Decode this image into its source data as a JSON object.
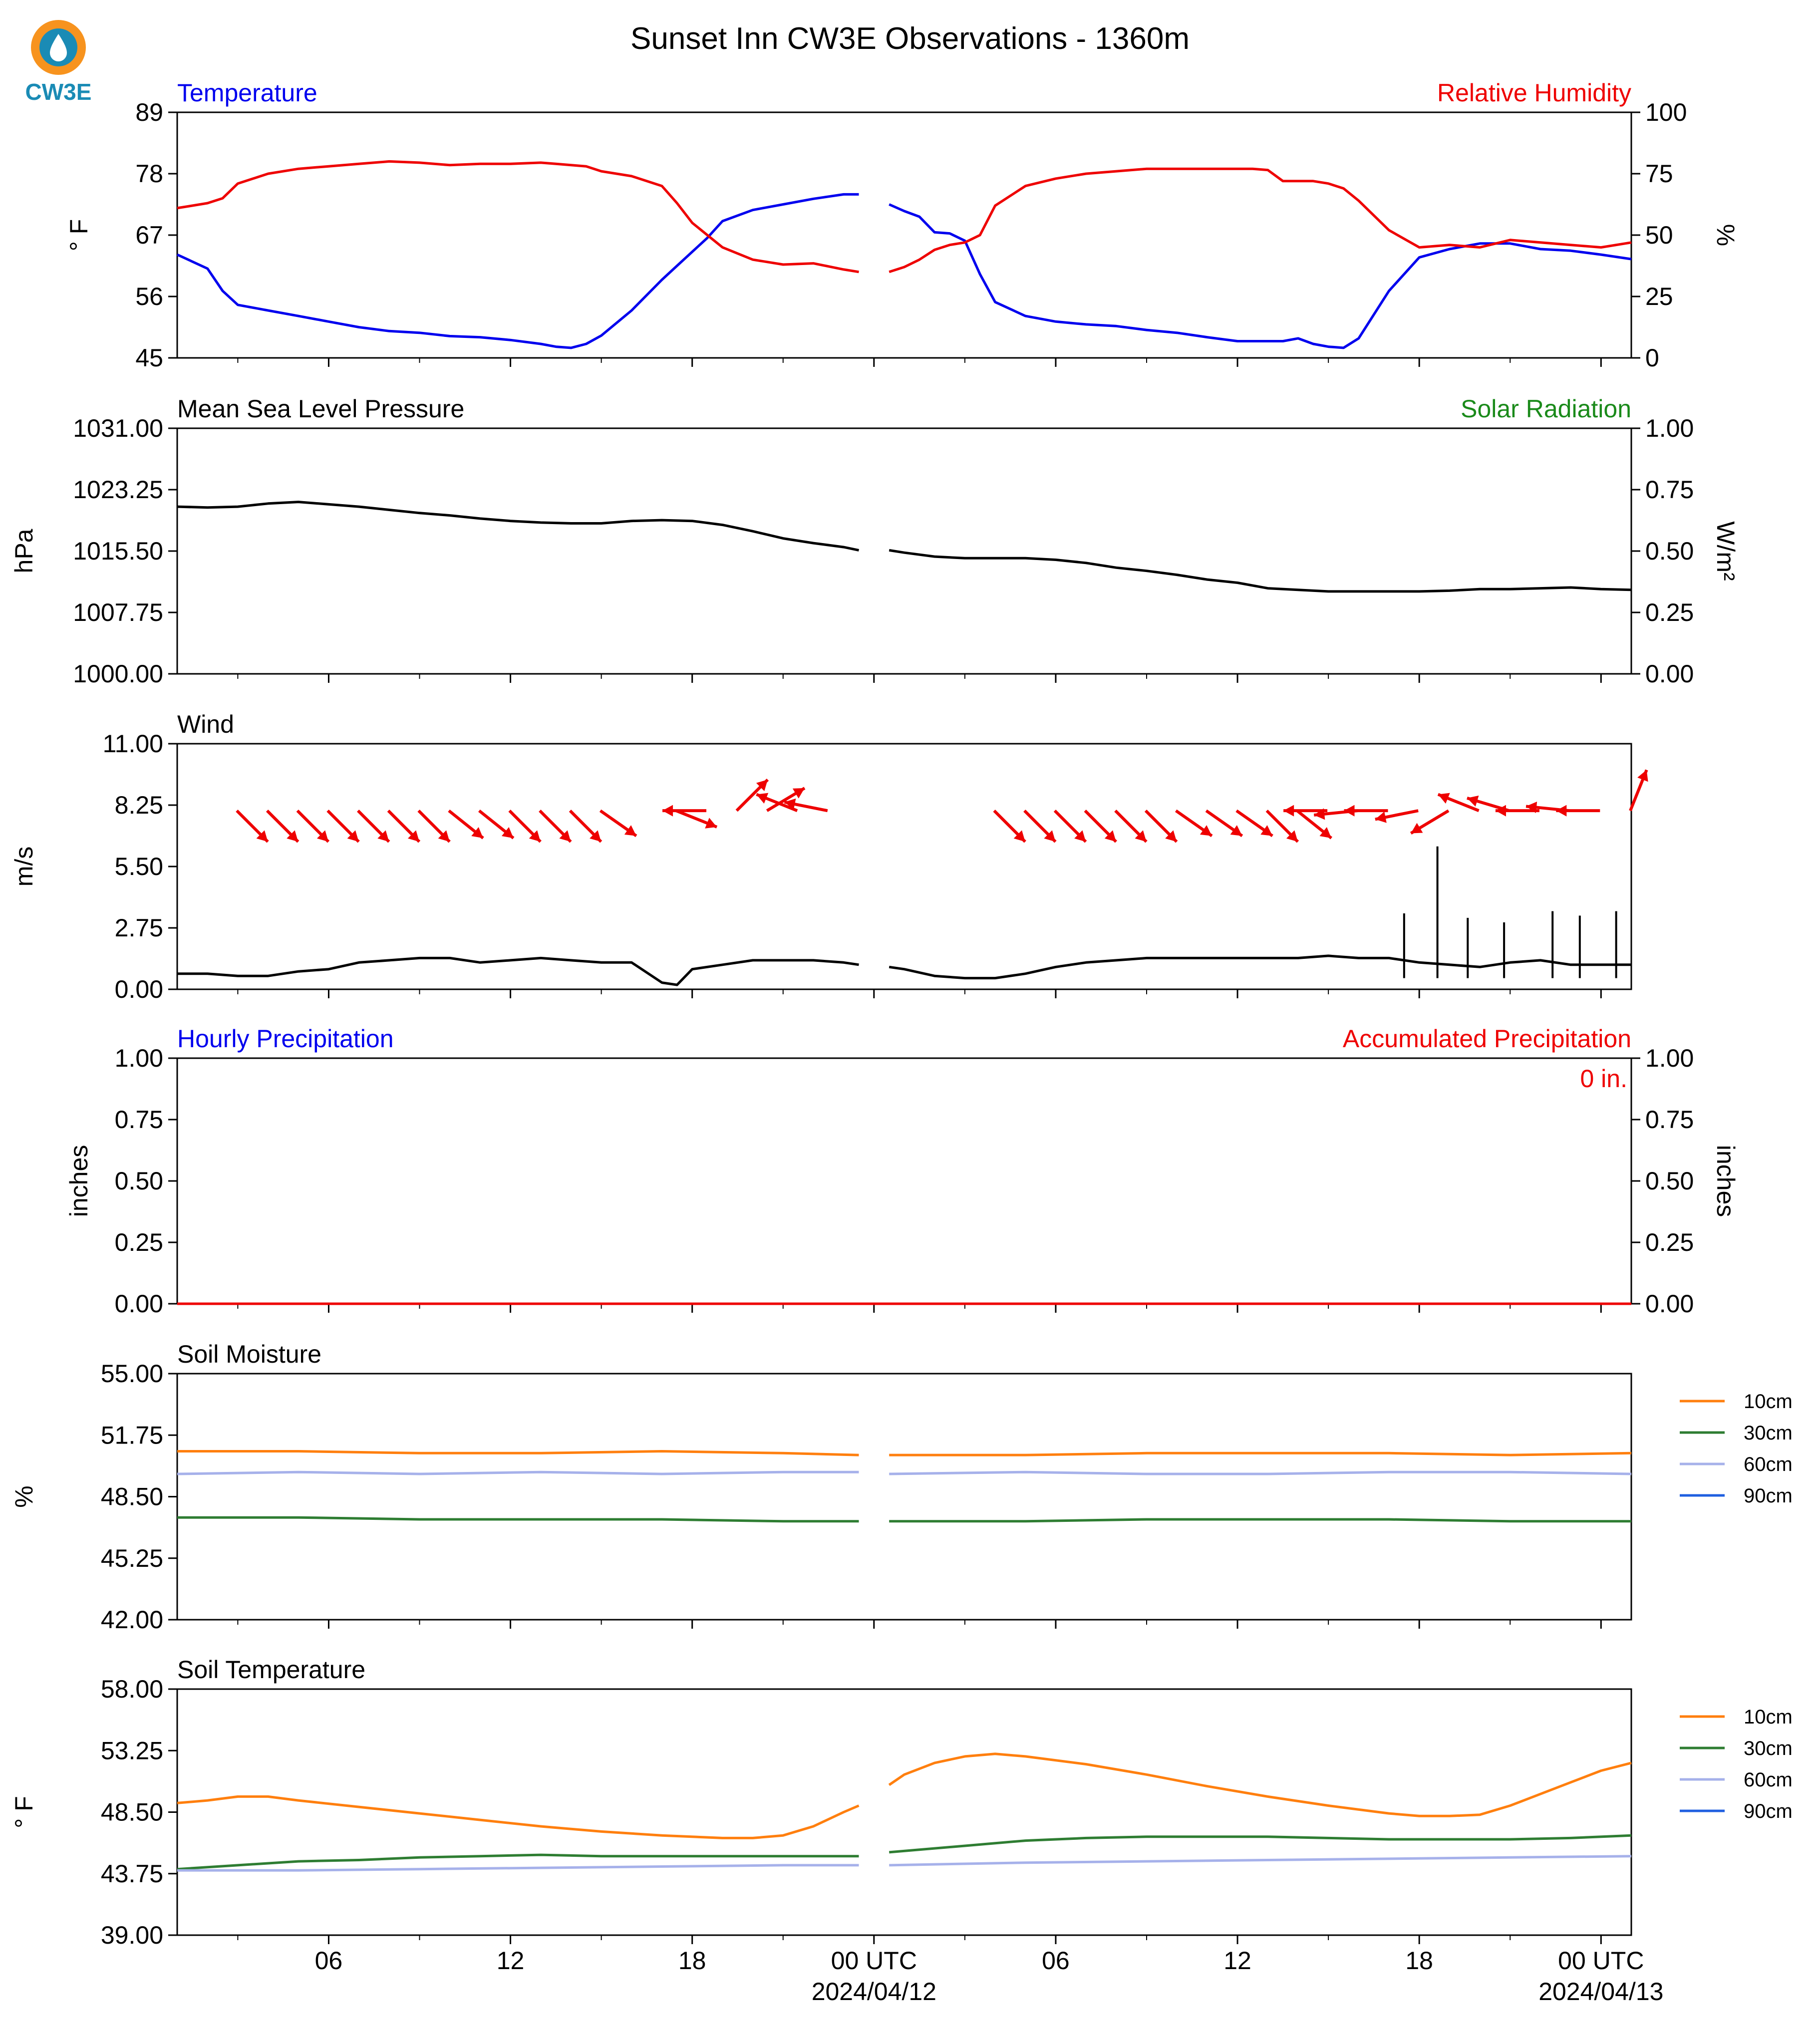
{
  "logo": {
    "text": "CW3E"
  },
  "title": "Sunset Inn CW3E Observations - 1360m",
  "x_axis": {
    "tick_labels": [
      "06",
      "12",
      "18",
      "00 UTC",
      "06",
      "12",
      "18",
      "00 UTC"
    ],
    "date_labels": [
      "2024/04/12",
      "2024/04/13"
    ]
  },
  "colors": {
    "blue": "#0000ee",
    "red": "#ee0000",
    "green": "#1a8a1a",
    "orange": "#ff7f0e",
    "soil30": "#2e7d32",
    "soil60": "#a6b1ea",
    "soil90": "#1f5fe0",
    "black": "#000000"
  },
  "chart_data": [
    {
      "type": "line",
      "left_title": "Temperature",
      "right_title": "Relative Humidity",
      "ylabel": "° F",
      "ylabel2": "%",
      "ylim": [
        45,
        89
      ],
      "ylim2": [
        0,
        100
      ],
      "yticks": [
        "89",
        "78",
        "67",
        "56",
        "45"
      ],
      "yticks2": [
        "100",
        "75",
        "50",
        "25",
        "0"
      ],
      "x_hours": "hours from 2024-04-11 01 UTC",
      "series": [
        {
          "name": "Temperature",
          "axis": "left",
          "color": "#0000ee",
          "x": [
            0,
            1,
            1.5,
            2,
            3,
            4,
            5,
            6,
            7,
            8,
            9,
            10,
            11,
            12,
            12.5,
            13,
            13.5,
            14,
            15,
            16,
            16.5,
            17,
            17.5,
            18,
            19,
            20,
            21,
            22,
            22.5,
            23,
            23.5,
            24,
            24.5,
            25,
            25.5,
            26,
            26.5,
            27,
            28,
            29,
            30,
            31,
            32,
            33,
            34,
            35,
            36,
            36.5,
            37,
            37.5,
            38,
            38.5,
            39,
            40,
            41,
            42,
            43,
            44,
            45,
            46,
            47,
            48
          ],
          "y": [
            63.5,
            61,
            57,
            54.5,
            53.5,
            52.5,
            51.5,
            50.5,
            49.8,
            49.5,
            48.9,
            48.7,
            48.2,
            47.5,
            47,
            46.8,
            47.5,
            49,
            53.5,
            59,
            61.5,
            64,
            66.5,
            69.5,
            71.5,
            72.5,
            73.5,
            74.3,
            74.3,
            null,
            72.5,
            71.3,
            70.3,
            67.5,
            67.3,
            66,
            60,
            55,
            52.5,
            51.5,
            51,
            50.7,
            50,
            49.5,
            48.7,
            48,
            48,
            48,
            48.5,
            47.5,
            47,
            46.8,
            48.5,
            57,
            63,
            64.5,
            65.5,
            65.5,
            64.5,
            64.2,
            63.5,
            62.7
          ]
        },
        {
          "name": "Relative Humidity",
          "axis": "right",
          "color": "#ee0000",
          "x": [
            0,
            0.5,
            1,
            1.5,
            2,
            3,
            4,
            5,
            6,
            7,
            8,
            9,
            10,
            11,
            12,
            12.5,
            13,
            13.5,
            14,
            15,
            16,
            16.5,
            17,
            17.5,
            18,
            19,
            20,
            21,
            22,
            22.5,
            23,
            23.5,
            24,
            24.5,
            25,
            25.5,
            26,
            26.5,
            27,
            28,
            29,
            30,
            31,
            32,
            33,
            34,
            35,
            35.5,
            36,
            36.5,
            37,
            37.5,
            38,
            38.5,
            39,
            40,
            41,
            42,
            43,
            44,
            45,
            46,
            47,
            48
          ],
          "y": [
            61,
            62,
            63,
            65,
            71,
            75,
            77,
            78,
            79,
            80,
            79.5,
            78.5,
            79,
            79,
            79.5,
            79,
            78.5,
            78,
            76,
            74,
            70,
            63,
            55,
            50,
            45,
            40,
            38,
            38.5,
            36,
            35,
            null,
            35,
            37,
            40,
            44,
            46,
            47,
            50,
            62,
            70,
            73,
            75,
            76,
            77,
            77,
            77,
            77,
            77,
            76.5,
            72,
            72,
            72,
            71,
            69,
            64,
            52,
            45,
            46,
            45,
            48,
            47,
            46,
            45,
            47
          ]
        }
      ]
    },
    {
      "type": "line",
      "left_title": "Mean Sea Level Pressure",
      "right_title": "Solar Radiation",
      "ylabel": "hPa",
      "ylabel2": "W/m²",
      "ylim": [
        1000,
        1031
      ],
      "ylim2": [
        0,
        1
      ],
      "yticks": [
        "1031.00",
        "1023.25",
        "1015.50",
        "1007.75",
        "1000.00"
      ],
      "yticks2": [
        "1.00",
        "0.75",
        "0.50",
        "0.25",
        "0.00"
      ],
      "series": [
        {
          "name": "Mean Sea Level Pressure",
          "axis": "left",
          "color": "#000000",
          "x": [
            0,
            1,
            2,
            3,
            4,
            5,
            6,
            7,
            8,
            9,
            10,
            11,
            12,
            13,
            14,
            15,
            16,
            17,
            18,
            19,
            20,
            21,
            22,
            22.5,
            23,
            23.5,
            24,
            25,
            26,
            27,
            28,
            29,
            30,
            31,
            32,
            33,
            34,
            35,
            36,
            37,
            38,
            39,
            40,
            41,
            42,
            43,
            44,
            45,
            46,
            47,
            48
          ],
          "y": [
            1021.1,
            1021,
            1021.1,
            1021.5,
            1021.7,
            1021.4,
            1021.1,
            1020.7,
            1020.3,
            1020,
            1019.6,
            1019.3,
            1019.1,
            1019,
            1019,
            1019.3,
            1019.4,
            1019.3,
            1018.8,
            1018,
            1017.1,
            1016.5,
            1016,
            1015.6,
            null,
            1015.6,
            1015.3,
            1014.8,
            1014.6,
            1014.6,
            1014.6,
            1014.4,
            1014,
            1013.4,
            1013,
            1012.5,
            1011.9,
            1011.5,
            1010.8,
            1010.6,
            1010.4,
            1010.4,
            1010.4,
            1010.4,
            1010.5,
            1010.7,
            1010.7,
            1010.8,
            1010.9,
            1010.7,
            1010.6
          ]
        }
      ]
    },
    {
      "type": "line",
      "left_title": "Wind",
      "ylabel": "m/s",
      "ylim": [
        0,
        11
      ],
      "yticks": [
        "11.00",
        "8.25",
        "5.50",
        "2.75",
        "0.00"
      ],
      "series": [
        {
          "name": "Wind",
          "axis": "left",
          "color": "#000000",
          "x": [
            0,
            1,
            2,
            3,
            4,
            5,
            6,
            7,
            8,
            9,
            10,
            11,
            12,
            13,
            14,
            15,
            16,
            16.5,
            17,
            18,
            19,
            20,
            21,
            22,
            22.5,
            23,
            23.5,
            24,
            25,
            26,
            27,
            28,
            29,
            30,
            31,
            32,
            33,
            34,
            35,
            36,
            37,
            38,
            39,
            40,
            41,
            42,
            43,
            44,
            45,
            46,
            47,
            48
          ],
          "y": [
            0.7,
            0.7,
            0.6,
            0.6,
            0.8,
            0.9,
            1.2,
            1.3,
            1.4,
            1.4,
            1.2,
            1.3,
            1.4,
            1.3,
            1.2,
            1.2,
            0.3,
            0.2,
            0.9,
            1.1,
            1.3,
            1.3,
            1.3,
            1.2,
            1.1,
            null,
            1,
            0.9,
            0.6,
            0.5,
            0.5,
            0.7,
            1,
            1.2,
            1.3,
            1.4,
            1.4,
            1.4,
            1.4,
            1.4,
            1.4,
            1.5,
            1.4,
            1.4,
            1.2,
            1.1,
            1,
            1.2,
            1.3,
            1.1,
            1.1,
            1.1
          ]
        }
      ],
      "peaks": {
        "x": [
          40.5,
          41.6,
          42.6,
          43.8,
          45.4,
          46.3,
          47.5
        ],
        "y": [
          3.4,
          6.4,
          3.2,
          3.0,
          3.5,
          3.3,
          3.5
        ]
      },
      "wind_vectors": {
        "type": "vector",
        "x": [
          2,
          3,
          4,
          5,
          6,
          7,
          8,
          9,
          10,
          11,
          12,
          13,
          14,
          16.5,
          17.5,
          18.5,
          19.5,
          20.5,
          21.5,
          27,
          28,
          29,
          30,
          31,
          32,
          33,
          34,
          35,
          36,
          37,
          38,
          39,
          40,
          41,
          42,
          43,
          44,
          45,
          46,
          47,
          48
        ],
        "u": [
          1,
          1,
          1,
          1,
          1,
          1,
          1,
          1,
          1,
          1,
          1,
          1,
          1,
          1,
          -1,
          1,
          1,
          -1,
          -1,
          1,
          1,
          1,
          1,
          1,
          1,
          1,
          1,
          1,
          1,
          1,
          -0.3,
          -1,
          -1,
          -1,
          -1,
          -1,
          -1,
          -1,
          -1,
          -1,
          0.4
        ],
        "v": [
          -1,
          -1,
          -1,
          -1,
          -1,
          -1,
          -1,
          -0.8,
          -0.8,
          -1,
          -1,
          -1,
          -0.7,
          -0.4,
          0,
          1,
          0.6,
          0.4,
          0.2,
          -1,
          -1,
          -1,
          -1,
          -1,
          -1,
          -0.7,
          -0.7,
          -0.7,
          -1,
          -0.8,
          0,
          -0.1,
          0,
          -0.2,
          -0.6,
          0.4,
          0.3,
          0,
          0.1,
          0,
          1
        ]
      }
    },
    {
      "type": "line",
      "left_title": "Hourly Precipitation",
      "right_title": "Accumulated Precipitation",
      "annotation": "0 in.",
      "ylabel": "inches",
      "ylabel2": "inches",
      "ylim": [
        0,
        1
      ],
      "ylim2": [
        0,
        1
      ],
      "yticks": [
        "1.00",
        "0.75",
        "0.50",
        "0.25",
        "0.00"
      ],
      "yticks2": [
        "1.00",
        "0.75",
        "0.50",
        "0.25",
        "0.00"
      ],
      "series": [
        {
          "name": "Accumulated Precipitation",
          "axis": "right",
          "color": "#ee0000",
          "x": [
            0,
            48
          ],
          "y": [
            0,
            0
          ]
        }
      ]
    },
    {
      "type": "line",
      "left_title": "Soil Moisture",
      "ylabel": "%",
      "ylim": [
        42,
        55
      ],
      "yticks": [
        "55.00",
        "51.75",
        "48.50",
        "45.25",
        "42.00"
      ],
      "legend": [
        "10cm",
        "30cm",
        "60cm",
        "90cm"
      ],
      "series": [
        {
          "name": "10cm",
          "color": "#ff7f0e",
          "x": [
            0,
            4,
            8,
            12,
            16,
            20,
            22.5,
            23,
            23.5,
            28,
            32,
            36,
            40,
            44,
            48
          ],
          "y": [
            50.9,
            50.9,
            50.8,
            50.8,
            50.9,
            50.8,
            50.7,
            null,
            50.7,
            50.7,
            50.8,
            50.8,
            50.8,
            50.7,
            50.8
          ]
        },
        {
          "name": "30cm",
          "color": "#2e7d32",
          "x": [
            0,
            4,
            8,
            12,
            16,
            20,
            22.5,
            23,
            23.5,
            28,
            32,
            36,
            40,
            44,
            48
          ],
          "y": [
            47.4,
            47.4,
            47.3,
            47.3,
            47.3,
            47.2,
            47.2,
            null,
            47.2,
            47.2,
            47.3,
            47.3,
            47.3,
            47.2,
            47.2
          ]
        },
        {
          "name": "60cm",
          "color": "#a6b1ea",
          "x": [
            0,
            4,
            8,
            12,
            16,
            20,
            22.5,
            23,
            23.5,
            28,
            32,
            36,
            40,
            44,
            48
          ],
          "y": [
            49.7,
            49.8,
            49.7,
            49.8,
            49.7,
            49.8,
            49.8,
            null,
            49.7,
            49.8,
            49.7,
            49.7,
            49.8,
            49.8,
            49.7
          ]
        },
        {
          "name": "90cm",
          "color": "#1f5fe0",
          "x": [],
          "y": []
        }
      ]
    },
    {
      "type": "line",
      "left_title": "Soil Temperature",
      "ylabel": "° F",
      "ylim": [
        39,
        58
      ],
      "yticks": [
        "58.00",
        "53.25",
        "48.50",
        "43.75",
        "39.00"
      ],
      "legend": [
        "10cm",
        "30cm",
        "60cm",
        "90cm"
      ],
      "series": [
        {
          "name": "10cm",
          "color": "#ff7f0e",
          "x": [
            0,
            1,
            2,
            3,
            4,
            6,
            8,
            10,
            12,
            14,
            16,
            18,
            19,
            20,
            21,
            22,
            22.5,
            23,
            23.5,
            24,
            25,
            26,
            27,
            28,
            30,
            32,
            34,
            36,
            38,
            40,
            41,
            42,
            43,
            44,
            45,
            46,
            47,
            48
          ],
          "y": [
            49.2,
            49.4,
            49.7,
            49.7,
            49.4,
            48.9,
            48.4,
            47.9,
            47.4,
            47,
            46.7,
            46.5,
            46.5,
            46.7,
            47.4,
            48.5,
            49,
            null,
            50.6,
            51.4,
            52.3,
            52.8,
            53,
            52.8,
            52.2,
            51.4,
            50.5,
            49.7,
            49,
            48.4,
            48.2,
            48.2,
            48.3,
            49,
            49.9,
            50.8,
            51.7,
            52.3
          ]
        },
        {
          "name": "30cm",
          "color": "#2e7d32",
          "x": [
            0,
            2,
            4,
            6,
            8,
            10,
            12,
            14,
            16,
            18,
            20,
            22.5,
            23,
            23.5,
            26,
            28,
            30,
            32,
            34,
            36,
            38,
            40,
            42,
            44,
            46,
            48
          ],
          "y": [
            44.1,
            44.4,
            44.7,
            44.8,
            45,
            45.1,
            45.2,
            45.1,
            45.1,
            45.1,
            45.1,
            45.1,
            null,
            45.4,
            45.9,
            46.3,
            46.5,
            46.6,
            46.6,
            46.6,
            46.5,
            46.4,
            46.4,
            46.4,
            46.5,
            46.7
          ]
        },
        {
          "name": "60cm",
          "color": "#a6b1ea",
          "x": [
            0,
            4,
            8,
            12,
            16,
            20,
            22.5,
            23,
            23.5,
            28,
            32,
            36,
            40,
            44,
            48
          ],
          "y": [
            44,
            44,
            44.1,
            44.2,
            44.3,
            44.4,
            44.4,
            null,
            44.4,
            44.6,
            44.7,
            44.8,
            44.9,
            45,
            45.1
          ]
        },
        {
          "name": "90cm",
          "color": "#1f5fe0",
          "x": [],
          "y": []
        }
      ]
    }
  ]
}
